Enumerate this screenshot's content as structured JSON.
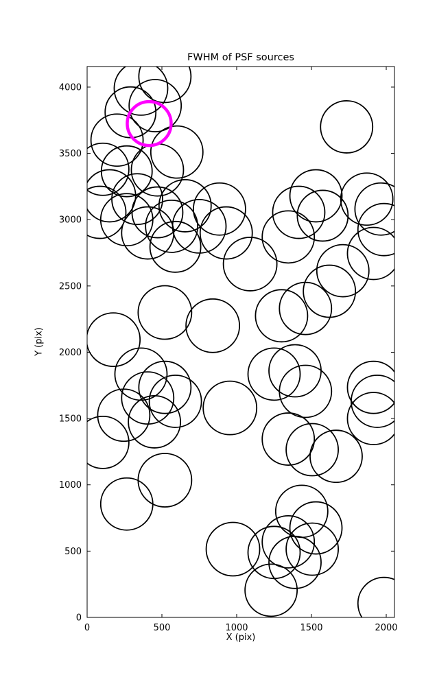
{
  "chart_data": {
    "type": "scatter",
    "title": "FWHM of PSF sources",
    "xlabel": "X (pix)",
    "ylabel": "Y (pix)",
    "xlim": [
      0,
      2055
    ],
    "ylim": [
      0,
      4155
    ],
    "x_ticks": [
      0,
      500,
      1000,
      1500,
      2000
    ],
    "y_ticks": [
      0,
      500,
      1000,
      1500,
      2000,
      2500,
      3000,
      3500,
      4000
    ],
    "grid": false,
    "legend": null,
    "marker": "open-circle",
    "colors": {
      "source": "#000000",
      "highlight": "#ff00ff",
      "background": "#ffffff"
    },
    "sources": [
      {
        "x": 360,
        "y": 3990,
        "r": 39
      },
      {
        "x": 520,
        "y": 4080,
        "r": 38
      },
      {
        "x": 455,
        "y": 3860,
        "r": 38
      },
      {
        "x": 290,
        "y": 3810,
        "r": 37
      },
      {
        "x": 200,
        "y": 3600,
        "r": 38
      },
      {
        "x": 600,
        "y": 3510,
        "r": 38
      },
      {
        "x": 105,
        "y": 3380,
        "r": 38
      },
      {
        "x": 265,
        "y": 3365,
        "r": 37
      },
      {
        "x": 470,
        "y": 3375,
        "r": 38
      },
      {
        "x": 150,
        "y": 3180,
        "r": 38
      },
      {
        "x": 335,
        "y": 3155,
        "r": 37
      },
      {
        "x": 85,
        "y": 3055,
        "r": 38
      },
      {
        "x": 265,
        "y": 3000,
        "r": 38
      },
      {
        "x": 470,
        "y": 3055,
        "r": 37
      },
      {
        "x": 405,
        "y": 2900,
        "r": 38
      },
      {
        "x": 565,
        "y": 2950,
        "r": 38
      },
      {
        "x": 655,
        "y": 3105,
        "r": 38
      },
      {
        "x": 750,
        "y": 2950,
        "r": 39
      },
      {
        "x": 590,
        "y": 2795,
        "r": 37
      },
      {
        "x": 885,
        "y": 3080,
        "r": 38
      },
      {
        "x": 930,
        "y": 2900,
        "r": 38
      },
      {
        "x": 1090,
        "y": 2665,
        "r": 39
      },
      {
        "x": 1345,
        "y": 2870,
        "r": 38
      },
      {
        "x": 1415,
        "y": 3055,
        "r": 38
      },
      {
        "x": 1530,
        "y": 3180,
        "r": 38
      },
      {
        "x": 1575,
        "y": 3030,
        "r": 37
      },
      {
        "x": 1735,
        "y": 3700,
        "r": 38
      },
      {
        "x": 1870,
        "y": 3155,
        "r": 38
      },
      {
        "x": 1965,
        "y": 3080,
        "r": 38
      },
      {
        "x": 1985,
        "y": 2925,
        "r": 38
      },
      {
        "x": 1915,
        "y": 2745,
        "r": 38
      },
      {
        "x": 1710,
        "y": 2615,
        "r": 38
      },
      {
        "x": 1620,
        "y": 2460,
        "r": 38
      },
      {
        "x": 1460,
        "y": 2330,
        "r": 38
      },
      {
        "x": 1300,
        "y": 2275,
        "r": 38
      },
      {
        "x": 520,
        "y": 2300,
        "r": 39
      },
      {
        "x": 840,
        "y": 2200,
        "r": 39
      },
      {
        "x": 175,
        "y": 2095,
        "r": 39
      },
      {
        "x": 1390,
        "y": 1860,
        "r": 38
      },
      {
        "x": 1460,
        "y": 1705,
        "r": 38
      },
      {
        "x": 1250,
        "y": 1835,
        "r": 38
      },
      {
        "x": 360,
        "y": 1835,
        "r": 38
      },
      {
        "x": 520,
        "y": 1735,
        "r": 38
      },
      {
        "x": 405,
        "y": 1655,
        "r": 38
      },
      {
        "x": 590,
        "y": 1630,
        "r": 38
      },
      {
        "x": 245,
        "y": 1525,
        "r": 38
      },
      {
        "x": 450,
        "y": 1475,
        "r": 38
      },
      {
        "x": 955,
        "y": 1580,
        "r": 39
      },
      {
        "x": 105,
        "y": 1320,
        "r": 38
      },
      {
        "x": 1345,
        "y": 1345,
        "r": 38
      },
      {
        "x": 1505,
        "y": 1265,
        "r": 38
      },
      {
        "x": 1665,
        "y": 1215,
        "r": 38
      },
      {
        "x": 520,
        "y": 1035,
        "r": 39
      },
      {
        "x": 265,
        "y": 855,
        "r": 38
      },
      {
        "x": 1435,
        "y": 800,
        "r": 38
      },
      {
        "x": 1530,
        "y": 675,
        "r": 38
      },
      {
        "x": 975,
        "y": 515,
        "r": 39
      },
      {
        "x": 1250,
        "y": 490,
        "r": 38
      },
      {
        "x": 1345,
        "y": 570,
        "r": 38
      },
      {
        "x": 1390,
        "y": 415,
        "r": 38
      },
      {
        "x": 1505,
        "y": 515,
        "r": 38
      },
      {
        "x": 1230,
        "y": 205,
        "r": 38
      },
      {
        "x": 1985,
        "y": 105,
        "r": 38
      },
      {
        "x": 1915,
        "y": 1735,
        "r": 38
      },
      {
        "x": 1940,
        "y": 1630,
        "r": 38
      },
      {
        "x": 1915,
        "y": 1500,
        "r": 38
      }
    ],
    "highlighted_source": {
      "x": 415,
      "y": 3725,
      "r": 32
    }
  }
}
